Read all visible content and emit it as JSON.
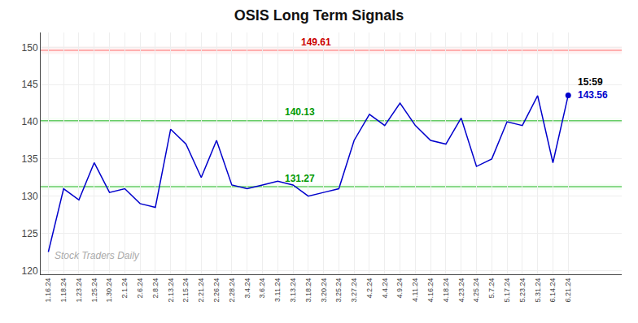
{
  "chart_data": {
    "type": "line",
    "title": "OSIS Long Term Signals",
    "categories": [
      "1.16.24",
      "1.18.24",
      "1.23.24",
      "1.25.24",
      "1.30.24",
      "2.1.24",
      "2.6.24",
      "2.8.24",
      "2.13.24",
      "2.15.24",
      "2.21.24",
      "2.26.24",
      "2.28.24",
      "3.4.24",
      "3.6.24",
      "3.11.24",
      "3.13.24",
      "3.18.24",
      "3.20.24",
      "3.25.24",
      "3.27.24",
      "4.2.24",
      "4.4.24",
      "4.9.24",
      "4.11.24",
      "4.16.24",
      "4.18.24",
      "4.23.24",
      "4.25.24",
      "5.7.24",
      "5.17.24",
      "5.23.24",
      "5.31.24",
      "6.14.24",
      "6.21.24"
    ],
    "values": [
      122.5,
      131.0,
      129.5,
      134.5,
      130.5,
      131.0,
      129.0,
      128.5,
      139.0,
      137.0,
      132.5,
      137.5,
      131.5,
      131.0,
      131.5,
      132.0,
      131.5,
      130.0,
      130.5,
      131.0,
      137.5,
      141.0,
      139.5,
      142.5,
      139.5,
      137.5,
      137.0,
      140.5,
      134.0,
      135.0,
      140.0,
      139.5,
      143.5,
      134.5,
      143.56
    ],
    "color": "#0000cc",
    "marker": "circle",
    "ylim": [
      119.5,
      152
    ],
    "yticks": [
      120,
      125,
      130,
      135,
      140,
      145,
      150
    ],
    "grid": true,
    "hlines": [
      {
        "value": 149.61,
        "band": 0.5,
        "color": "#ff9999",
        "fill_color": "#ffcccc",
        "label_color": "#cc0000"
      },
      {
        "value": 140.13,
        "band": 0.4,
        "color": "#66cc66",
        "fill_color": "#ccffcc",
        "label_color": "#009900"
      },
      {
        "value": 131.27,
        "band": 0.4,
        "color": "#66cc66",
        "fill_color": "#ccffcc",
        "label_color": "#009900"
      }
    ],
    "annotations": [
      {
        "text": "15:59",
        "color": "#000000"
      },
      {
        "text": "143.56",
        "color": "#0000cc"
      },
      {
        "text": "Stock Traders Daily",
        "color": "#aaaaaa"
      }
    ]
  }
}
